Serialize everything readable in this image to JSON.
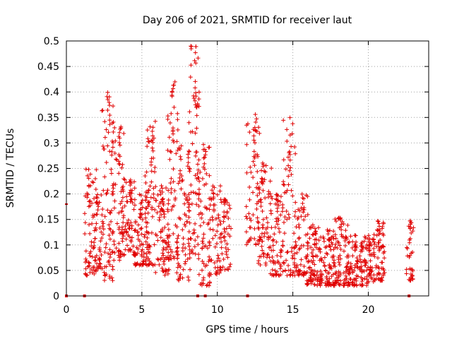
{
  "chart_data": {
    "type": "scatter",
    "title": "Day 206 of 2021, SRMTID for receiver laut",
    "xlabel": "GPS time / hours",
    "ylabel": "SRMTID / TECUs",
    "xlim": [
      0,
      24
    ],
    "ylim": [
      0,
      0.5
    ],
    "xticks": [
      0,
      5,
      10,
      15,
      20
    ],
    "xtick_labels": [
      "0",
      "5",
      "10",
      "15",
      "20"
    ],
    "yticks": [
      0,
      0.05,
      0.1,
      0.15,
      0.2,
      0.25,
      0.3,
      0.35,
      0.4,
      0.45,
      0.5
    ],
    "ytick_labels": [
      "0",
      "0.05",
      "0.1",
      "0.15",
      "0.2",
      "0.25",
      "0.3",
      "0.35",
      "0.4",
      "0.45",
      "0.5"
    ],
    "grid": true,
    "marker": "plus",
    "color": "#e00000",
    "series": [
      {
        "name": "SRMTID",
        "clusters": [
          {
            "x_range": [
              1.2,
              2.0
            ],
            "y_range": [
              0.04,
              0.25
            ],
            "n": 55
          },
          {
            "x_range": [
              1.8,
              2.4
            ],
            "y_range": [
              0.05,
              0.2
            ],
            "n": 40
          },
          {
            "x_range": [
              2.3,
              3.1
            ],
            "y_range": [
              0.03,
              0.4
            ],
            "n": 70
          },
          {
            "x_range": [
              3.0,
              3.8
            ],
            "y_range": [
              0.07,
              0.35
            ],
            "n": 60
          },
          {
            "x_range": [
              3.6,
              4.6
            ],
            "y_range": [
              0.08,
              0.23
            ],
            "n": 70
          },
          {
            "x_range": [
              4.5,
              5.5
            ],
            "y_range": [
              0.06,
              0.2
            ],
            "n": 75
          },
          {
            "x_range": [
              5.2,
              6.0
            ],
            "y_range": [
              0.06,
              0.35
            ],
            "n": 60
          },
          {
            "x_range": [
              5.9,
              6.8
            ],
            "y_range": [
              0.04,
              0.22
            ],
            "n": 65
          },
          {
            "x_range": [
              6.7,
              7.4
            ],
            "y_range": [
              0.07,
              0.42
            ],
            "n": 65
          },
          {
            "x_range": [
              7.3,
              8.2
            ],
            "y_range": [
              0.03,
              0.3
            ],
            "n": 70
          },
          {
            "x_range": [
              8.1,
              8.8
            ],
            "y_range": [
              0.08,
              0.49
            ],
            "n": 65
          },
          {
            "x_range": [
              8.7,
              9.5
            ],
            "y_range": [
              0.02,
              0.3
            ],
            "n": 60
          },
          {
            "x_range": [
              9.4,
              10.3
            ],
            "y_range": [
              0.04,
              0.22
            ],
            "n": 55
          },
          {
            "x_range": [
              10.2,
              10.9
            ],
            "y_range": [
              0.05,
              0.19
            ],
            "n": 40
          },
          {
            "x_range": [
              11.9,
              12.8
            ],
            "y_range": [
              0.1,
              0.36
            ],
            "n": 60
          },
          {
            "x_range": [
              12.7,
              13.6
            ],
            "y_range": [
              0.06,
              0.27
            ],
            "n": 65
          },
          {
            "x_range": [
              13.5,
              14.4
            ],
            "y_range": [
              0.04,
              0.2
            ],
            "n": 60
          },
          {
            "x_range": [
              14.3,
              15.2
            ],
            "y_range": [
              0.04,
              0.35
            ],
            "n": 60
          },
          {
            "x_range": [
              15.1,
              16.0
            ],
            "y_range": [
              0.04,
              0.2
            ],
            "n": 60
          },
          {
            "x_range": [
              15.9,
              16.9
            ],
            "y_range": [
              0.02,
              0.14
            ],
            "n": 75
          },
          {
            "x_range": [
              16.8,
              17.8
            ],
            "y_range": [
              0.02,
              0.13
            ],
            "n": 80
          },
          {
            "x_range": [
              17.7,
              18.7
            ],
            "y_range": [
              0.02,
              0.16
            ],
            "n": 80
          },
          {
            "x_range": [
              18.6,
              19.6
            ],
            "y_range": [
              0.02,
              0.12
            ],
            "n": 70
          },
          {
            "x_range": [
              19.5,
              20.4
            ],
            "y_range": [
              0.02,
              0.12
            ],
            "n": 65
          },
          {
            "x_range": [
              20.3,
              21.1
            ],
            "y_range": [
              0.03,
              0.15
            ],
            "n": 60
          },
          {
            "x_range": [
              22.5,
              23.0
            ],
            "y_range": [
              0.03,
              0.15
            ],
            "n": 30
          }
        ],
        "baseline_points_x": [
          0,
          1.2,
          8.7,
          9.2,
          12,
          22.7
        ],
        "edge_point": {
          "x": 0,
          "y": 0.18
        }
      }
    ]
  }
}
